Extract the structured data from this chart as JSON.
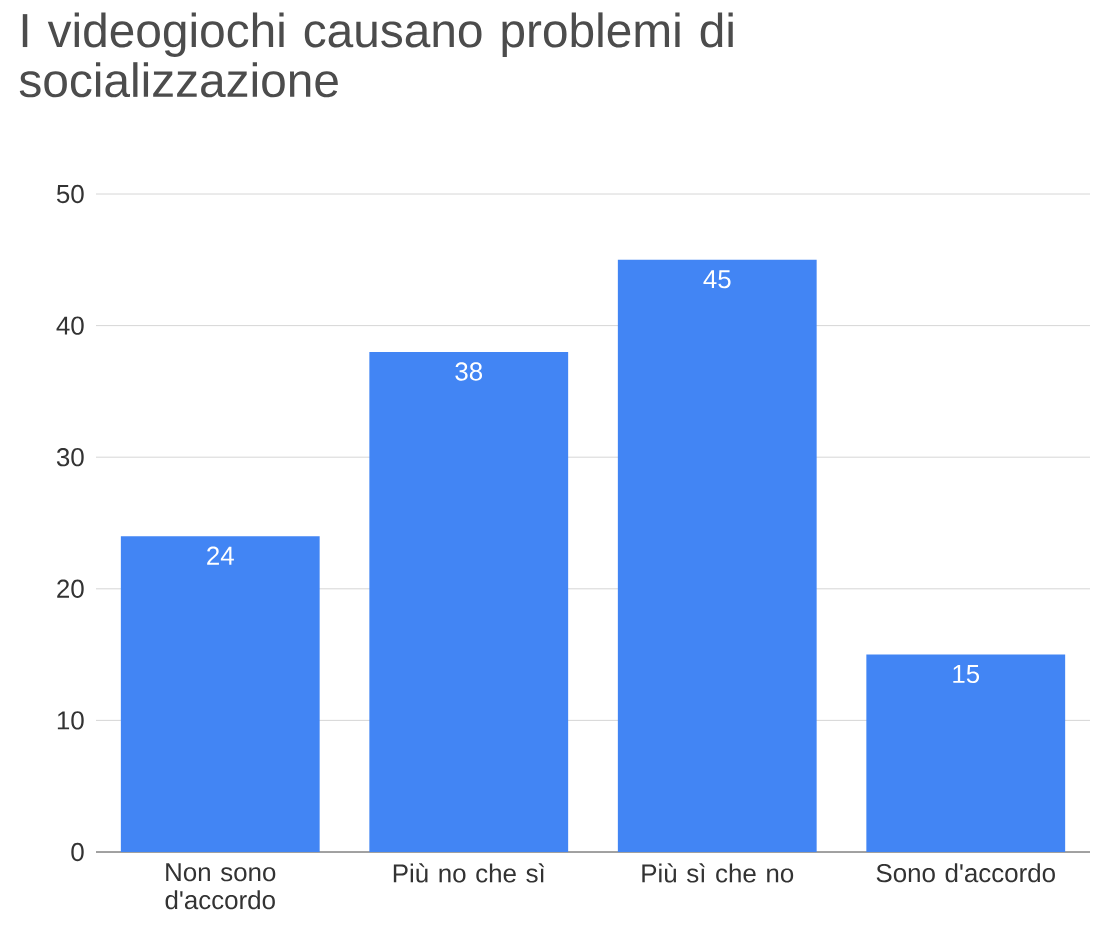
{
  "chart_data": {
    "type": "bar",
    "title": "I videogiochi causano problemi di socializzazione",
    "categories": [
      "Non sono d'accordo",
      "Più no che sì",
      "Più sì che no",
      "Sono d'accordo"
    ],
    "values": [
      24,
      38,
      45,
      15
    ],
    "color": "#4285f4",
    "ylim": [
      0,
      50
    ],
    "yticks": [
      0,
      10,
      20,
      30,
      40,
      50
    ],
    "grid": "y",
    "data_labels": true
  }
}
